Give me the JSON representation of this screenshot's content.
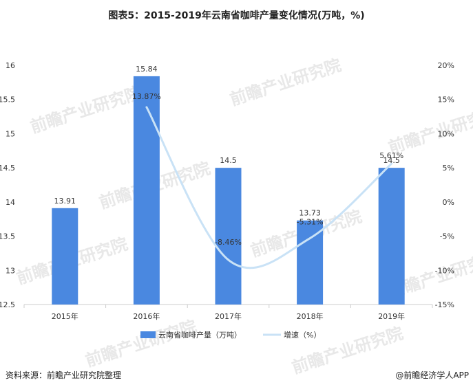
{
  "title": "图表5：2015-2019年云南省咖啡产量变化情况(万吨，%)",
  "watermark": "前瞻产业研究院",
  "footer": {
    "source": "资料来源：前瞻产业研究院整理",
    "brand": "@前瞻经济学人APP"
  },
  "colors": {
    "bar": "#4a88e0",
    "line": "#c9e2f6",
    "axis": "#cccccc"
  },
  "chart_data": {
    "type": "bar",
    "categories": [
      "2015年",
      "2016年",
      "2017年",
      "2018年",
      "2019年"
    ],
    "series": [
      {
        "name": "云南省咖啡产量（万吨）",
        "type": "bar",
        "axis": "left",
        "values": [
          13.91,
          15.84,
          14.5,
          13.73,
          14.5
        ],
        "labels": [
          "13.91",
          "15.84",
          "14.5",
          "13.73",
          "14.5"
        ]
      },
      {
        "name": "增速（%）",
        "type": "line",
        "axis": "right",
        "values": [
          null,
          13.87,
          -8.46,
          -5.31,
          5.61
        ],
        "labels": [
          "",
          "13.87%",
          "-8.46%",
          "-5.31%",
          "5.61%"
        ]
      }
    ],
    "y_left": {
      "lim": [
        12.5,
        16
      ],
      "ticks": [
        "12.5",
        "13",
        "13.5",
        "14",
        "14.5",
        "15",
        "15.5",
        "16"
      ]
    },
    "y_right": {
      "lim": [
        -15,
        20
      ],
      "ticks": [
        "-15%",
        "-10%",
        "-5%",
        "0%",
        "5%",
        "10%",
        "15%",
        "20%"
      ]
    },
    "legend_position": "bottom"
  }
}
